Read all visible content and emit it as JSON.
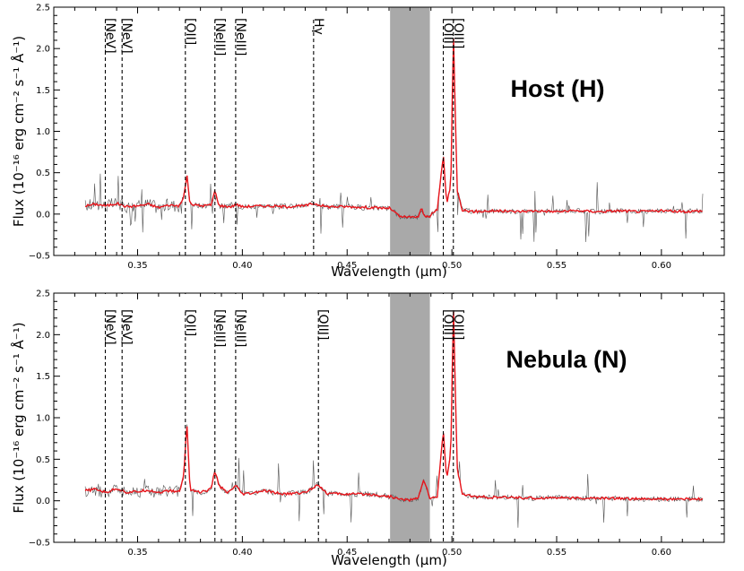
{
  "chart_data": [
    {
      "type": "line",
      "title": "Host (H)",
      "xlabel": "Wavelength (μm)",
      "ylabel": "Flux (10⁻¹⁶ erg cm⁻² s⁻¹ Å⁻¹)",
      "xlim": [
        0.31,
        0.63
      ],
      "ylim": [
        -0.5,
        2.5
      ],
      "x_ticks": [
        "0.35",
        "0.40",
        "0.45",
        "0.50",
        "0.55",
        "0.60"
      ],
      "x_tick_values": [
        0.35,
        0.4,
        0.45,
        0.5,
        0.55,
        0.6
      ],
      "y_ticks": [
        "−0.5",
        "0.0",
        "0.5",
        "1.0",
        "1.5",
        "2.0",
        "2.5"
      ],
      "y_tick_values": [
        -0.5,
        0.0,
        0.5,
        1.0,
        1.5,
        2.0,
        2.5
      ],
      "shaded_region": [
        0.4705,
        0.4895
      ],
      "emission_lines": [
        {
          "label": "[NeV]",
          "x": 0.3346
        },
        {
          "label": "[NeV]",
          "x": 0.3426
        },
        {
          "label": "[OII]",
          "x": 0.3728
        },
        {
          "label": "[NeIII]",
          "x": 0.3869
        },
        {
          "label": "[NeIII]",
          "x": 0.3968
        },
        {
          "label": "Hγ",
          "x": 0.434
        },
        {
          "label": "[OIII]",
          "x": 0.4959
        },
        {
          "label": "[OIII]",
          "x": 0.5007
        }
      ],
      "series": [
        {
          "x": [
            0.325,
            0.33,
            0.335,
            0.34,
            0.345,
            0.35,
            0.355,
            0.36,
            0.365,
            0.37,
            0.372,
            0.3735,
            0.375,
            0.38,
            0.385,
            0.3869,
            0.389,
            0.395,
            0.3968,
            0.4,
            0.41,
            0.42,
            0.43,
            0.434,
            0.44,
            0.45,
            0.46,
            0.4705,
            0.475,
            0.48,
            0.484,
            0.4855,
            0.487,
            0.4895,
            0.493,
            0.4959,
            0.4975,
            0.4995,
            0.5007,
            0.5025,
            0.505,
            0.51,
            0.52,
            0.53,
            0.54,
            0.55,
            0.56,
            0.57,
            0.58,
            0.59,
            0.6,
            0.61,
            0.62
          ],
          "values": [
            0.1,
            0.12,
            0.1,
            0.13,
            0.09,
            0.1,
            0.12,
            0.08,
            0.11,
            0.1,
            0.2,
            0.48,
            0.12,
            0.1,
            0.11,
            0.28,
            0.1,
            0.09,
            0.12,
            0.09,
            0.1,
            0.09,
            0.1,
            0.13,
            0.09,
            0.09,
            0.08,
            0.07,
            -0.03,
            -0.04,
            -0.03,
            0.07,
            -0.03,
            -0.02,
            0.05,
            0.72,
            0.12,
            0.35,
            2.22,
            0.3,
            0.05,
            0.03,
            0.04,
            0.03,
            0.04,
            0.03,
            0.04,
            0.03,
            0.04,
            0.03,
            0.04,
            0.03,
            0.04
          ],
          "color": "#e8141b"
        }
      ],
      "noise_color": "#555555"
    },
    {
      "type": "line",
      "title": "Nebula (N)",
      "xlabel": "Wavelength (μm)",
      "ylabel": "Flux (10⁻¹⁶ erg cm⁻² s⁻¹ Å⁻¹)",
      "xlim": [
        0.31,
        0.63
      ],
      "ylim": [
        -0.5,
        2.5
      ],
      "x_ticks": [
        "0.35",
        "0.40",
        "0.45",
        "0.50",
        "0.55",
        "0.60"
      ],
      "x_tick_values": [
        0.35,
        0.4,
        0.45,
        0.5,
        0.55,
        0.6
      ],
      "y_ticks": [
        "−0.5",
        "0.0",
        "0.5",
        "1.0",
        "1.5",
        "2.0",
        "2.5"
      ],
      "y_tick_values": [
        -0.5,
        0.0,
        0.5,
        1.0,
        1.5,
        2.0,
        2.5
      ],
      "shaded_region": [
        0.4705,
        0.4895
      ],
      "emission_lines": [
        {
          "label": "[NeV]",
          "x": 0.3346
        },
        {
          "label": "[NeV]",
          "x": 0.3426
        },
        {
          "label": "[OII]",
          "x": 0.3728
        },
        {
          "label": "[NeIII]",
          "x": 0.3869
        },
        {
          "label": "[NeIII]",
          "x": 0.3968
        },
        {
          "label": "[OIII]",
          "x": 0.4363
        },
        {
          "label": "[OIII]",
          "x": 0.4959
        },
        {
          "label": "[OIII]",
          "x": 0.5007
        }
      ],
      "series": [
        {
          "x": [
            0.325,
            0.33,
            0.335,
            0.34,
            0.345,
            0.35,
            0.355,
            0.36,
            0.365,
            0.37,
            0.372,
            0.3735,
            0.375,
            0.38,
            0.385,
            0.3869,
            0.389,
            0.393,
            0.3968,
            0.4,
            0.405,
            0.41,
            0.42,
            0.43,
            0.4363,
            0.44,
            0.45,
            0.46,
            0.4705,
            0.475,
            0.48,
            0.484,
            0.4865,
            0.4885,
            0.4895,
            0.493,
            0.4959,
            0.4975,
            0.4995,
            0.5007,
            0.5025,
            0.505,
            0.51,
            0.52,
            0.53,
            0.54,
            0.55,
            0.56,
            0.57,
            0.58,
            0.59,
            0.6,
            0.61,
            0.62
          ],
          "values": [
            0.12,
            0.14,
            0.1,
            0.15,
            0.1,
            0.11,
            0.13,
            0.1,
            0.12,
            0.11,
            0.3,
            0.95,
            0.14,
            0.1,
            0.14,
            0.36,
            0.18,
            0.09,
            0.18,
            0.08,
            0.09,
            0.12,
            0.08,
            0.1,
            0.2,
            0.09,
            0.08,
            0.08,
            0.05,
            0.02,
            0.01,
            0.03,
            0.26,
            0.12,
            0.02,
            0.05,
            0.85,
            0.25,
            0.6,
            2.38,
            0.4,
            0.08,
            0.05,
            0.04,
            0.04,
            0.03,
            0.04,
            0.03,
            0.03,
            0.03,
            0.02,
            0.02,
            0.02,
            0.02
          ],
          "color": "#e8141b"
        }
      ],
      "noise_color": "#555555"
    }
  ],
  "colors": {
    "shade": "#a9a9a9",
    "spectrum": "#e8141b",
    "noise": "#555555",
    "marker_line": "#000000"
  }
}
